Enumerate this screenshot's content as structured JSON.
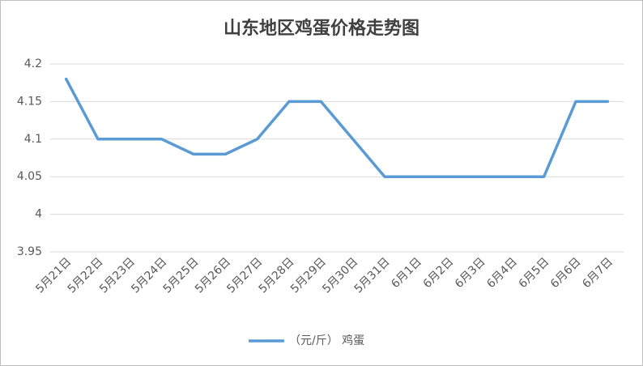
{
  "chart_data": {
    "type": "line",
    "title": "山东地区鸡蛋价格走势图",
    "categories": [
      "5月21日",
      "5月22日",
      "5月23日",
      "5月24日",
      "5月25日",
      "5月26日",
      "5月27日",
      "5月28日",
      "5月29日",
      "5月30日",
      "5月31日",
      "6月1日",
      "6月2日",
      "6月3日",
      "6月4日",
      "6月5日",
      "6月6日",
      "6月7日"
    ],
    "series": [
      {
        "name": "（元/斤） 鸡蛋",
        "color": "#5b9bd5",
        "values": [
          4.18,
          4.1,
          4.1,
          4.1,
          4.08,
          4.08,
          4.1,
          4.15,
          4.15,
          4.1,
          4.05,
          4.05,
          4.05,
          4.05,
          4.05,
          4.05,
          4.15,
          4.15
        ]
      }
    ],
    "ylim": [
      3.95,
      4.2
    ],
    "yticks": [
      3.95,
      4,
      4.05,
      4.1,
      4.15,
      4.2
    ],
    "grid": true,
    "legend": "bottom"
  }
}
